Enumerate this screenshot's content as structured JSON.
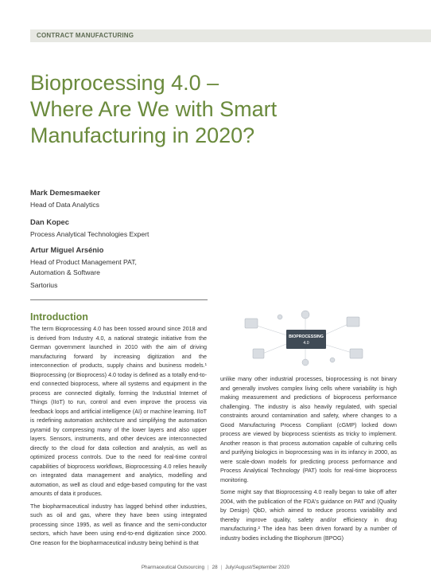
{
  "section": {
    "label": "CONTRACT MANUFACTURING"
  },
  "title": {
    "line1": "Bioprocessing 4.0 –",
    "line2": "Where Are We with Smart",
    "line3": "Manufacturing in 2020?"
  },
  "authors": [
    {
      "name": "Mark Demesmaeker",
      "role1": "Head of Data Analytics",
      "role2": ""
    },
    {
      "name": "Dan Kopec",
      "role1": "Process Analytical Technologies Expert",
      "role2": ""
    },
    {
      "name": "Artur Miguel Arsénio",
      "role1": "Head of Product Management PAT,",
      "role2": "Automation & Software"
    }
  ],
  "affiliation": "Sartorius",
  "intro": {
    "heading": "Introduction",
    "left_p1": "The term Bioprocessing 4.0 has been tossed around since 2018 and is derived from Industry 4.0, a national strategic initiative from the German government launched in 2010 with the aim of driving manufacturing forward by increasing digitization and the interconnection of products, supply chains and business models.¹ Bioprocessing (or Bioprocess) 4.0 today is defined as a totally end-to-end connected bioprocess, where all systems and equipment in the process are connected digitally, forming the Industrial Internet of Things (IIoT) to run, control and even improve the process via feedback loops and artificial intelligence (AI) or machine learning. IIoT is redefining automation architecture and simplifying the automation pyramid by compressing many of the lower layers and also upper layers. Sensors, instruments, and other devices are interconnected directly to the cloud for data collection and analysis, as well as optimized process controls. Due to the need for real-time control capabilities of bioprocess workflows, Bioprocessing 4.0 relies heavily on integrated data management and analytics, modelling and automation, as well as cloud and edge-based computing for the vast amounts of data it produces.",
    "left_p2": "The biopharmaceutical industry has lagged behind other industries, such as oil and gas, where they have been using integrated processing since 1995, as well as finance and the semi-conductor sectors, which have been using end-to-end digitization since 2000. One reason for the biopharmaceutical industry being behind is that",
    "right_p1": "unlike many other industrial processes, bioprocessing is not binary and generally involves complex living cells where variability is high making measurement and predictions of bioprocess performance challenging. The industry is also heavily regulated, with special constraints around contamination and safety, where changes to a Good Manufacturing Process Compliant (cGMP) locked down process are viewed by bioprocess scientists as tricky to implement. Another reason is that process automation capable of culturing cells and purifying biologics in bioprocessing was in its infancy in 2000, as were scale-down models for predicting process performance and Process Analytical Technology (PAT) tools for real-time bioprocess monitoring.",
    "right_p2": "Some might say that Bioprocessing 4.0 really began to take off after 2004, with the publication of the FDA's guidance on PAT and (Quality by Design) QbD, which aimed to reduce process variability and thereby improve quality, safety and/or efficiency in drug manufacturing.² The idea has been driven forward by a number of industry bodies including the Biophorum (BPOG)"
  },
  "figure": {
    "label_line1": "BIOPROCESSING",
    "label_line2": "4.0",
    "icon": "connected-bioprocess-illustration"
  },
  "footer": {
    "publication": "Pharmaceutical Outsourcing",
    "page": "28",
    "issue": "July/August/September 2020"
  },
  "colors": {
    "accent": "#6a8a3c",
    "section_bar": "#e7e8e3"
  }
}
